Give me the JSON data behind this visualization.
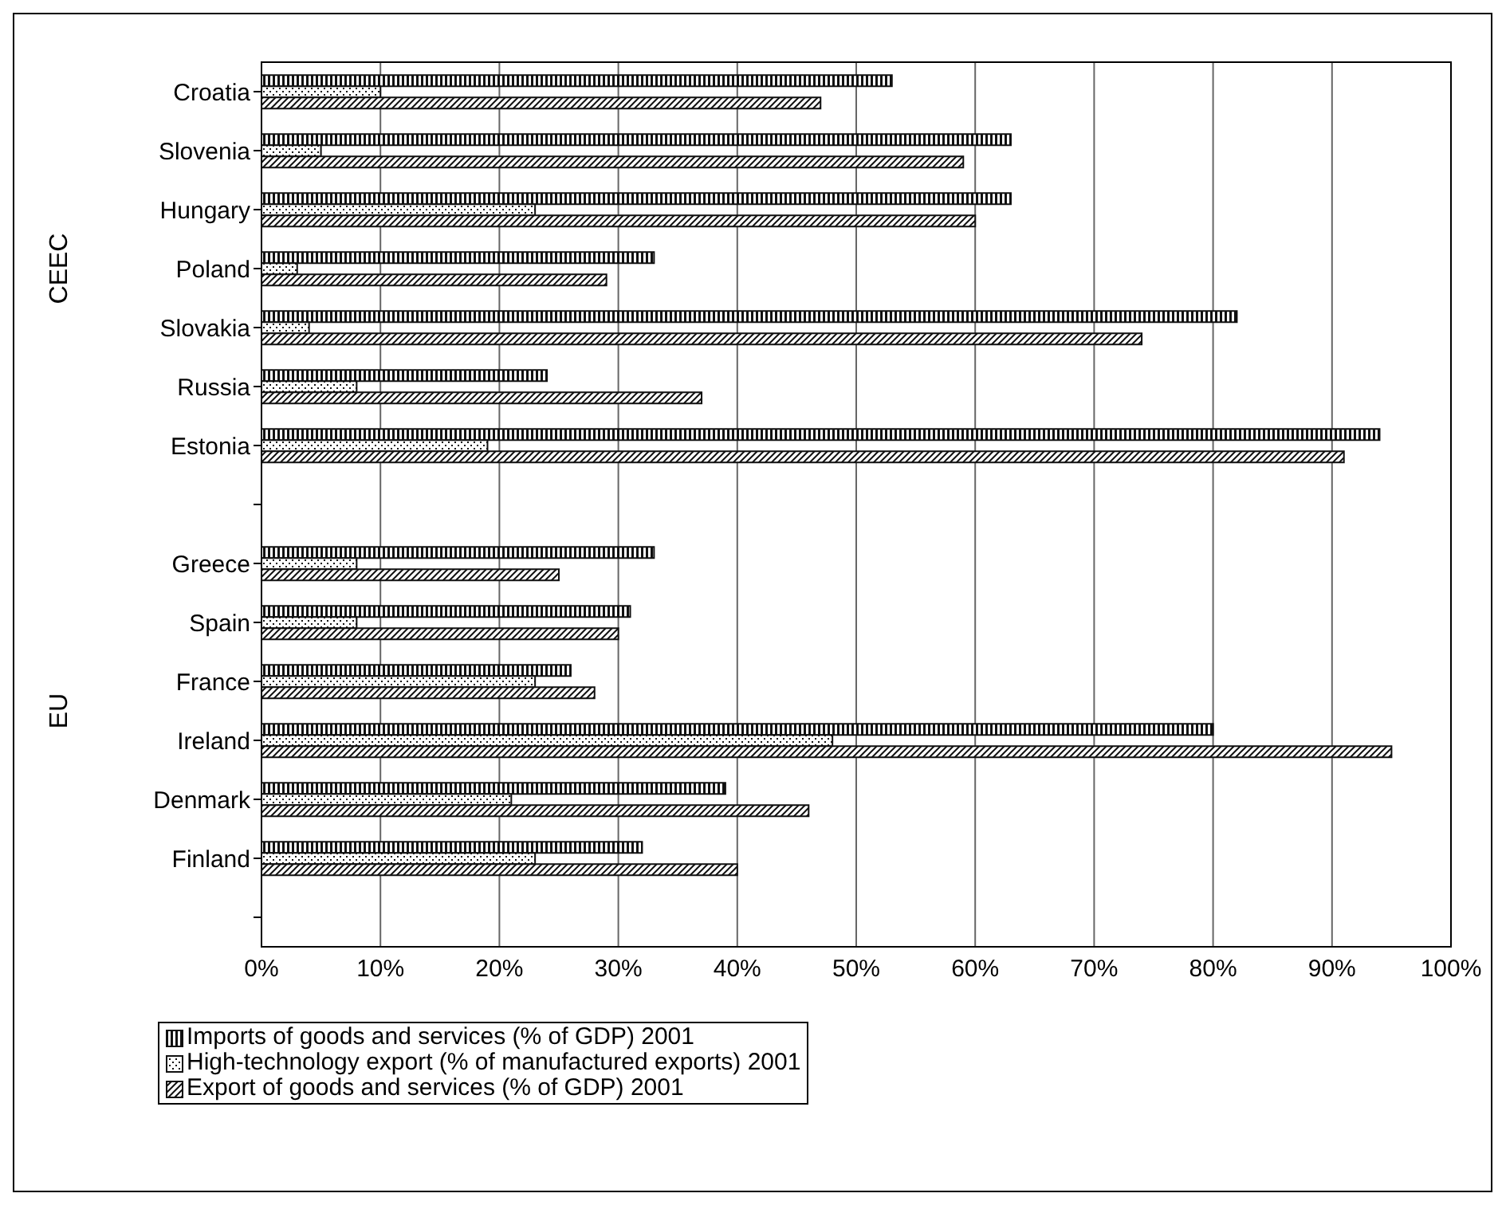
{
  "chart_data": {
    "type": "bar",
    "orientation": "horizontal",
    "categories": [
      "Croatia",
      "Slovenia",
      "Hungary",
      "Poland",
      "Slovakia",
      "Russia",
      "Estonia",
      null,
      "Greece",
      "Spain",
      "France",
      "Ireland",
      "Denmark",
      "Finland",
      null
    ],
    "series": [
      {
        "name": "Imports of goods and services (% of GDP) 2001",
        "color": "#111111",
        "values": [
          53,
          63,
          63,
          33,
          82,
          24,
          94,
          null,
          33,
          31,
          26,
          80,
          39,
          32,
          null
        ]
      },
      {
        "name": "High-technology export (% of manufactured exports) 2001",
        "color": "#111111",
        "values": [
          10,
          5,
          23,
          3,
          4,
          8,
          19,
          null,
          8,
          8,
          23,
          48,
          21,
          23,
          null
        ]
      },
      {
        "name": "Export of goods and services (% of GDP) 2001",
        "color": "#111111",
        "values": [
          47,
          59,
          60,
          29,
          74,
          37,
          91,
          null,
          25,
          30,
          28,
          95,
          46,
          40,
          null
        ]
      }
    ],
    "xlim": [
      0,
      100
    ],
    "xticks": [
      {
        "value": 0,
        "label": "0%"
      },
      {
        "value": 10,
        "label": "10%"
      },
      {
        "value": 20,
        "label": "20%"
      },
      {
        "value": 30,
        "label": "30%"
      },
      {
        "value": 40,
        "label": "40%"
      },
      {
        "value": 50,
        "label": "50%"
      },
      {
        "value": 60,
        "label": "60%"
      },
      {
        "value": 70,
        "label": "70%"
      },
      {
        "value": 80,
        "label": "80%"
      },
      {
        "value": 90,
        "label": "90%"
      },
      {
        "value": 100,
        "label": "100%"
      }
    ],
    "annotations": [
      "CEEC",
      "EU"
    ],
    "grid": "x",
    "legend": "bottom"
  }
}
